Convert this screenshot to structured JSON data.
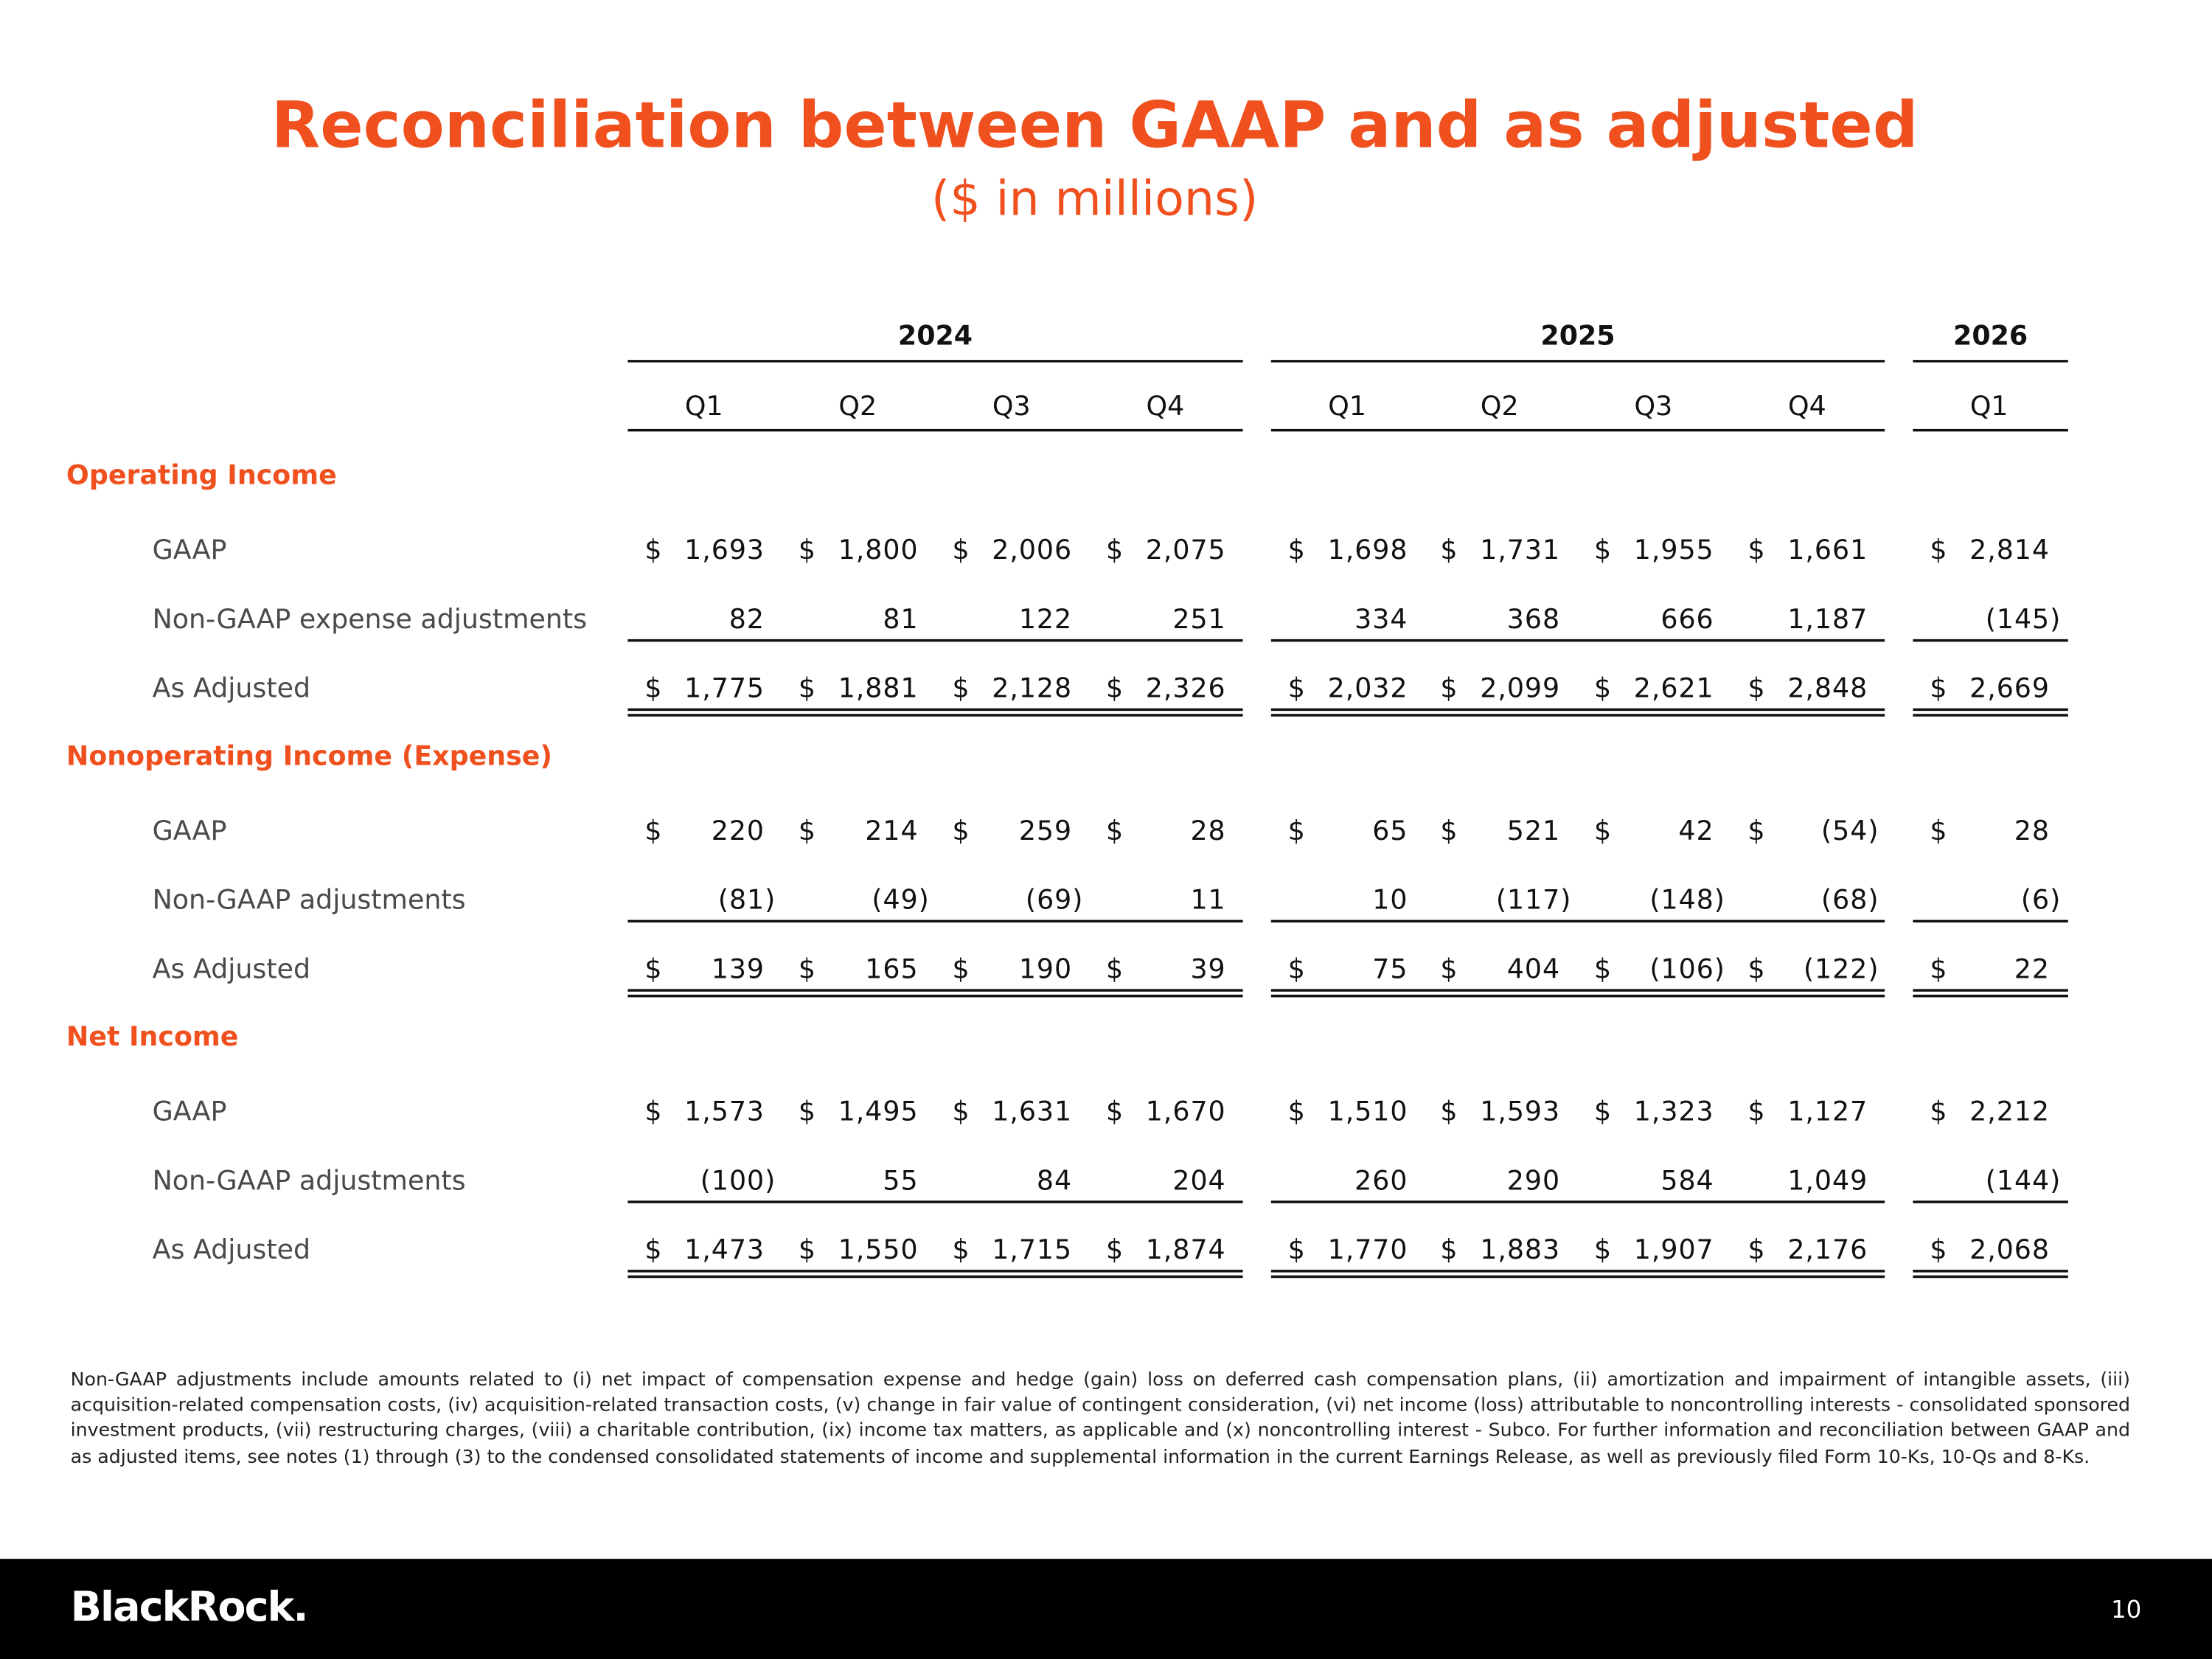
{
  "header": {
    "title": "Reconciliation between GAAP and as adjusted",
    "subtitle": "($ in millions)"
  },
  "table": {
    "groups": [
      {
        "year": "2024",
        "quarters": [
          "Q1",
          "Q2",
          "Q3",
          "Q4"
        ]
      },
      {
        "year": "2025",
        "quarters": [
          "Q1",
          "Q2",
          "Q3",
          "Q4"
        ]
      },
      {
        "year": "2026",
        "quarters": [
          "Q1"
        ]
      }
    ],
    "currency": "$",
    "sections": [
      {
        "title": "Operating Income",
        "rows": [
          {
            "label": "GAAP",
            "cells": [
              "1,693",
              "1,800",
              "2,006",
              "2,075",
              "1,698",
              "1,731",
              "1,955",
              "1,661",
              "2,814"
            ]
          },
          {
            "label": "Non-GAAP expense adjustments",
            "cells": [
              "82",
              "81",
              "122",
              "251",
              "334",
              "368",
              "666",
              "1,187",
              "(145)"
            ]
          },
          {
            "label": "As Adjusted",
            "cells": [
              "1,775",
              "1,881",
              "2,128",
              "2,326",
              "2,032",
              "2,099",
              "2,621",
              "2,848",
              "2,669"
            ]
          }
        ]
      },
      {
        "title": "Nonoperating Income (Expense)",
        "rows": [
          {
            "label": "GAAP",
            "cells": [
              "220",
              "214",
              "259",
              "28",
              "65",
              "521",
              "42",
              "(54)",
              "28"
            ]
          },
          {
            "label": "Non-GAAP adjustments",
            "cells": [
              "(81)",
              "(49)",
              "(69)",
              "11",
              "10",
              "(117)",
              "(148)",
              "(68)",
              "(6)"
            ]
          },
          {
            "label": "As Adjusted",
            "cells": [
              "139",
              "165",
              "190",
              "39",
              "75",
              "404",
              "(106)",
              "(122)",
              "22"
            ]
          }
        ]
      },
      {
        "title": "Net Income",
        "rows": [
          {
            "label": "GAAP",
            "cells": [
              "1,573",
              "1,495",
              "1,631",
              "1,670",
              "1,510",
              "1,593",
              "1,323",
              "1,127",
              "2,212"
            ]
          },
          {
            "label": "Non-GAAP adjustments",
            "cells": [
              "(100)",
              "55",
              "84",
              "204",
              "260",
              "290",
              "584",
              "1,049",
              "(144)"
            ]
          },
          {
            "label": "As Adjusted",
            "cells": [
              "1,473",
              "1,550",
              "1,715",
              "1,874",
              "1,770",
              "1,883",
              "1,907",
              "2,176",
              "2,068"
            ]
          }
        ]
      }
    ]
  },
  "footnote": "Non-GAAP adjustments include amounts related to (i) net impact of compensation expense and hedge (gain) loss on deferred cash compensation plans, (ii) amortization and impairment of intangible assets, (iii) acquisition-related compensation costs, (iv) acquisition-related transaction costs, (v) change in fair value of contingent consideration, (vi) net income (loss) attributable to noncontrolling interests - consolidated sponsored investment products, (vii) restructuring charges, (viii) a charitable contribution, (ix) income tax matters, as applicable and (x) noncontrolling interest - Subco. For further information and reconciliation between GAAP and as adjusted items, see notes (1) through (3) to the condensed consolidated statements of income and supplemental information in the current Earnings Release, as well as previously filed Form 10-Ks, 10-Qs and 8-Ks.",
  "footer": {
    "logo": "BlackRock.",
    "page": "10"
  }
}
